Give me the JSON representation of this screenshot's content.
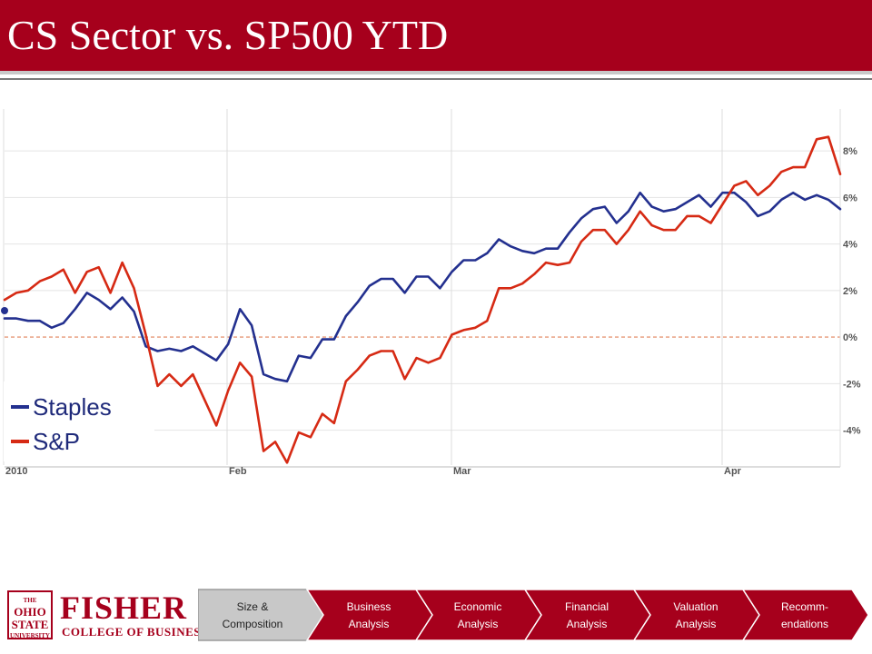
{
  "slide": {
    "title": "CS Sector vs. SP500 YTD"
  },
  "chart_data": {
    "type": "line",
    "x_ticks": [
      "2010",
      "Feb",
      "Mar",
      "Apr"
    ],
    "y_ticks": [
      "8%",
      "6%",
      "4%",
      "2%",
      "0%",
      "-2%",
      "-4%"
    ],
    "y_tick_values": [
      8,
      6,
      4,
      2,
      0,
      -2,
      -4
    ],
    "ylim": [
      -5.5,
      9.8
    ],
    "baseline": 0,
    "grid": true,
    "legend_position": "bottom-left",
    "series": [
      {
        "name": "Staples",
        "color": "#23308f",
        "values": [
          0.8,
          0.8,
          0.7,
          0.7,
          0.4,
          0.6,
          1.2,
          1.9,
          1.6,
          1.2,
          1.7,
          1.1,
          -0.4,
          -0.6,
          -0.5,
          -0.6,
          -0.4,
          -0.7,
          -1.0,
          -0.3,
          1.2,
          0.5,
          -1.6,
          -1.8,
          -1.9,
          -0.8,
          -0.9,
          -0.1,
          -0.1,
          0.9,
          1.5,
          2.2,
          2.5,
          2.5,
          1.9,
          2.6,
          2.6,
          2.1,
          2.8,
          3.3,
          3.3,
          3.6,
          4.2,
          3.9,
          3.7,
          3.6,
          3.8,
          3.8,
          4.5,
          5.1,
          5.5,
          5.6,
          4.9,
          5.4,
          6.2,
          5.6,
          5.4,
          5.5,
          5.8,
          6.1,
          5.6,
          6.2,
          6.2,
          5.8,
          5.2,
          5.4,
          5.9,
          6.2,
          5.9,
          6.1,
          5.9,
          5.5
        ]
      },
      {
        "name": "S&P",
        "color": "#d62a14",
        "values": [
          1.6,
          1.9,
          2.0,
          2.4,
          2.6,
          2.9,
          1.9,
          2.8,
          3.0,
          1.9,
          3.2,
          2.1,
          0.1,
          -2.1,
          -1.6,
          -2.1,
          -1.6,
          -2.7,
          -3.8,
          -2.3,
          -1.1,
          -1.7,
          -4.9,
          -4.5,
          -5.4,
          -4.1,
          -4.3,
          -3.3,
          -3.7,
          -1.9,
          -1.4,
          -0.8,
          -0.6,
          -0.6,
          -1.8,
          -0.9,
          -1.1,
          -0.9,
          0.1,
          0.3,
          0.4,
          0.7,
          2.1,
          2.1,
          2.3,
          2.7,
          3.2,
          3.1,
          3.2,
          4.1,
          4.6,
          4.6,
          4.0,
          4.6,
          5.4,
          4.8,
          4.6,
          4.6,
          5.2,
          5.2,
          4.9,
          5.7,
          6.5,
          6.7,
          6.1,
          6.5,
          7.1,
          7.3,
          7.3,
          8.5,
          8.6,
          7.0
        ]
      }
    ]
  },
  "legend": {
    "items": [
      {
        "label": "Staples",
        "color": "#23308f"
      },
      {
        "label": "S&P",
        "color": "#d62a14"
      }
    ]
  },
  "footer": {
    "logo_seal_line1": "THE",
    "logo_seal_line2": "OHIO STATE",
    "logo_seal_line3": "UNIVERSITY",
    "logo_name": "FISHER",
    "logo_sub": "COLLEGE OF BUSINESS",
    "nav": [
      {
        "label": "Size &\nComposition",
        "active": true
      },
      {
        "label": "Business\nAnalysis",
        "active": false
      },
      {
        "label": "Economic\nAnalysis",
        "active": false
      },
      {
        "label": "Financial\nAnalysis",
        "active": false
      },
      {
        "label": "Valuation\nAnalysis",
        "active": false
      },
      {
        "label": "Recomm-\nendations",
        "active": false
      }
    ],
    "colors": {
      "active_fill": "#c8c8c8",
      "inactive_fill": "#a6001c"
    }
  }
}
